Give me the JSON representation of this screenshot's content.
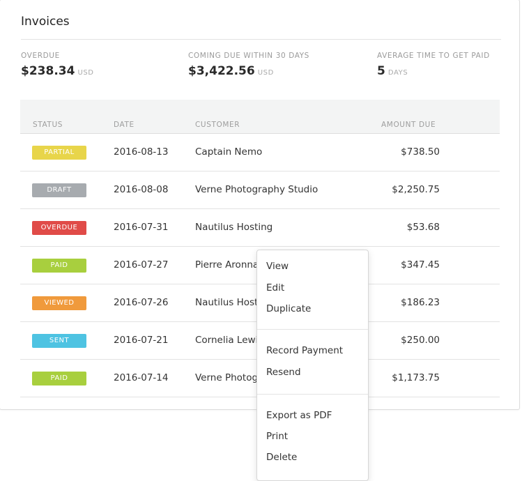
{
  "title": "Invoices",
  "metrics": [
    {
      "label": "OVERDUE",
      "value": "$238.34",
      "unit": "USD"
    },
    {
      "label": "COMING DUE WITHIN 30 DAYS",
      "value": "$3,422.56",
      "unit": "USD"
    },
    {
      "label": "AVERAGE TIME TO GET PAID",
      "value": "5",
      "unit": "DAYS"
    }
  ],
  "table": {
    "headers": {
      "status": "STATUS",
      "date": "DATE",
      "customer": "CUSTOMER",
      "amount": "AMOUNT DUE"
    },
    "rows": [
      {
        "status": "PARTIAL",
        "status_color": "#e8d54a",
        "date": "2016-08-13",
        "customer": "Captain Nemo",
        "amount": "$738.50"
      },
      {
        "status": "DRAFT",
        "status_color": "#a7abaf",
        "date": "2016-08-08",
        "customer": "Verne Photography Studio",
        "amount": "$2,250.75"
      },
      {
        "status": "OVERDUE",
        "status_color": "#e04b48",
        "date": "2016-07-31",
        "customer": "Nautilus Hosting",
        "amount": "$53.68"
      },
      {
        "status": "PAID",
        "status_color": "#a8cf3e",
        "date": "2016-07-27",
        "customer": "Pierre Aronna",
        "amount": "$347.45"
      },
      {
        "status": "VIEWED",
        "status_color": "#f09a3c",
        "date": "2016-07-26",
        "customer": "Nautilus Host",
        "amount": "$186.23"
      },
      {
        "status": "SENT",
        "status_color": "#4ec3e2",
        "date": "2016-07-21",
        "customer": "Cornelia Lewis",
        "amount": "$250.00"
      },
      {
        "status": "PAID",
        "status_color": "#a8cf3e",
        "date": "2016-07-14",
        "customer": "Verne Photog",
        "amount": "$1,173.75"
      }
    ]
  },
  "context_menu": {
    "view": "View",
    "edit": "Edit",
    "duplicate": "Duplicate",
    "record_payment": "Record Payment",
    "resend": "Resend",
    "export_pdf": "Export as PDF",
    "print": "Print",
    "delete": "Delete"
  }
}
